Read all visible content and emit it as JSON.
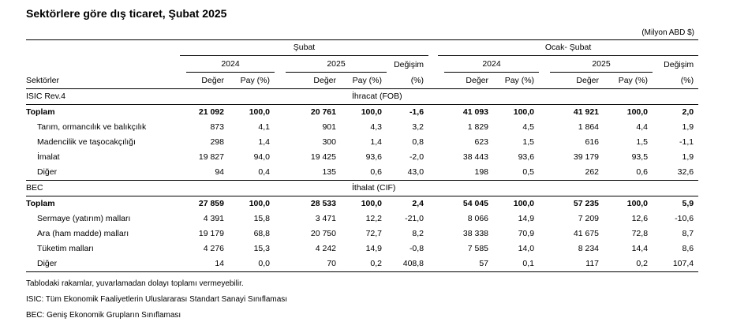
{
  "title": "Sektörlere göre dış ticaret, Şubat 2025",
  "unit": "(Milyon ABD $)",
  "header": {
    "period1": "Şubat",
    "period2": "Ocak- Şubat",
    "year_a": "2024",
    "year_b": "2025",
    "change": "Değişim",
    "change_unit": "(%)",
    "sectors": "Sektörler",
    "value": "Değer",
    "share": "Pay (%)"
  },
  "sections": [
    {
      "left": "ISIC  Rev.4",
      "right": "İhracat (FOB)",
      "rows": [
        {
          "label": "Toplam",
          "bold": true,
          "v": [
            "21 092",
            "100,0",
            "20 761",
            "100,0",
            "-1,6",
            "41 093",
            "100,0",
            "41 921",
            "100,0",
            "2,0"
          ]
        },
        {
          "label": "Tarım, ormancılık ve balıkçılık",
          "bold": false,
          "v": [
            "873",
            "4,1",
            "901",
            "4,3",
            "3,2",
            "1 829",
            "4,5",
            "1 864",
            "4,4",
            "1,9"
          ]
        },
        {
          "label": "Madencilik ve taşocakçılığı",
          "bold": false,
          "v": [
            "298",
            "1,4",
            "300",
            "1,4",
            "0,8",
            "623",
            "1,5",
            "616",
            "1,5",
            "-1,1"
          ]
        },
        {
          "label": "İmalat",
          "bold": false,
          "v": [
            "19 827",
            "94,0",
            "19 425",
            "93,6",
            "-2,0",
            "38 443",
            "93,6",
            "39 179",
            "93,5",
            "1,9"
          ]
        },
        {
          "label": "Diğer",
          "bold": false,
          "v": [
            "94",
            "0,4",
            "135",
            "0,6",
            "43,0",
            "198",
            "0,5",
            "262",
            "0,6",
            "32,6"
          ]
        }
      ]
    },
    {
      "left": "BEC",
      "right": "İthalat (CIF)",
      "rows": [
        {
          "label": "Toplam",
          "bold": true,
          "v": [
            "27 859",
            "100,0",
            "28 533",
            "100,0",
            "2,4",
            "54 045",
            "100,0",
            "57 235",
            "100,0",
            "5,9"
          ]
        },
        {
          "label": "Sermaye (yatırım) malları",
          "bold": false,
          "v": [
            "4 391",
            "15,8",
            "3 471",
            "12,2",
            "-21,0",
            "8 066",
            "14,9",
            "7 209",
            "12,6",
            "-10,6"
          ]
        },
        {
          "label": "Ara (ham madde) malları",
          "bold": false,
          "v": [
            "19 179",
            "68,8",
            "20 750",
            "72,7",
            "8,2",
            "38 338",
            "70,9",
            "41 675",
            "72,8",
            "8,7"
          ]
        },
        {
          "label": "Tüketim malları",
          "bold": false,
          "v": [
            "4 276",
            "15,3",
            "4 242",
            "14,9",
            "-0,8",
            "7 585",
            "14,0",
            "8 234",
            "14,4",
            "8,6"
          ]
        },
        {
          "label": "Diğer",
          "bold": false,
          "v": [
            "14",
            "0,0",
            "70",
            "0,2",
            "408,8",
            "57",
            "0,1",
            "117",
            "0,2",
            "107,4"
          ]
        }
      ]
    }
  ],
  "notes": [
    "Tablodaki rakamlar, yuvarlamadan dolayı toplamı vermeyebilir.",
    "ISIC: Tüm Ekonomik Faaliyetlerin Uluslararası Standart Sanayi Sınıflaması",
    "BEC: Geniş Ekonomik Grupların Sınıflaması"
  ]
}
